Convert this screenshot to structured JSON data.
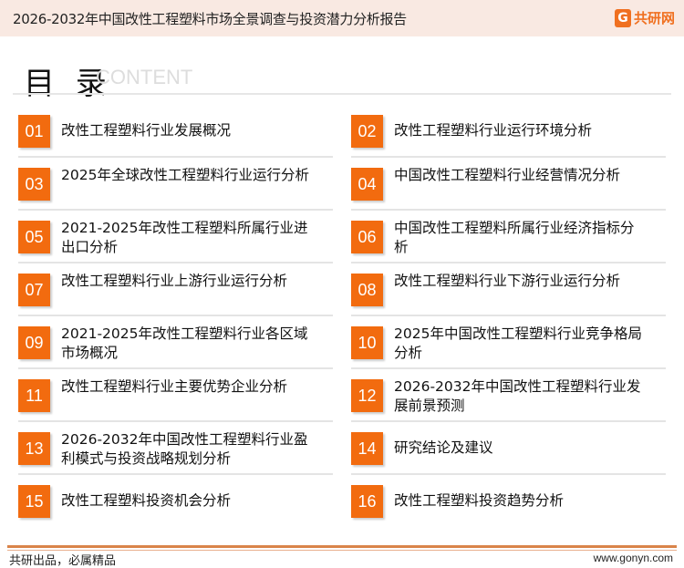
{
  "header": {
    "title": "2026-2032年中国改性工程塑料市场全景调查与投资潜力分析报告",
    "logo_text": "共研网",
    "logo_icon": "G"
  },
  "toc": {
    "title": "目 录",
    "subtitle": "CONTENT"
  },
  "items": [
    {
      "num": "01",
      "label": "改性工程塑料行业发展概况"
    },
    {
      "num": "02",
      "label": "改性工程塑料行业运行环境分析"
    },
    {
      "num": "03",
      "label": "2025年全球改性工程塑料行业运行分析"
    },
    {
      "num": "04",
      "label": "中国改性工程塑料行业经营情况分析"
    },
    {
      "num": "05",
      "label": "2021-2025年改性工程塑料所属行业进出口分析"
    },
    {
      "num": "06",
      "label": "中国改性工程塑料所属行业经济指标分析"
    },
    {
      "num": "07",
      "label": "改性工程塑料行业上游行业运行分析"
    },
    {
      "num": "08",
      "label": "改性工程塑料行业下游行业运行分析"
    },
    {
      "num": "09",
      "label": "2021-2025年改性工程塑料行业各区域市场概况"
    },
    {
      "num": "10",
      "label": "2025年中国改性工程塑料行业竞争格局分析"
    },
    {
      "num": "11",
      "label": "改性工程塑料行业主要优势企业分析"
    },
    {
      "num": "12",
      "label": "2026-2032年中国改性工程塑料行业发展前景预测"
    },
    {
      "num": "13",
      "label": "2026-2032年中国改性工程塑料行业盈利模式与投资战略规划分析"
    },
    {
      "num": "14",
      "label": "研究结论及建议"
    },
    {
      "num": "15",
      "label": "改性工程塑料投资机会分析"
    },
    {
      "num": "16",
      "label": "改性工程塑料投资趋势分析"
    }
  ],
  "footer": {
    "left": "共研出品，必属精品",
    "right": "www.gonyn.com"
  },
  "colors": {
    "accent": "#f26b0f",
    "header_bg": "#f9e9e2"
  }
}
